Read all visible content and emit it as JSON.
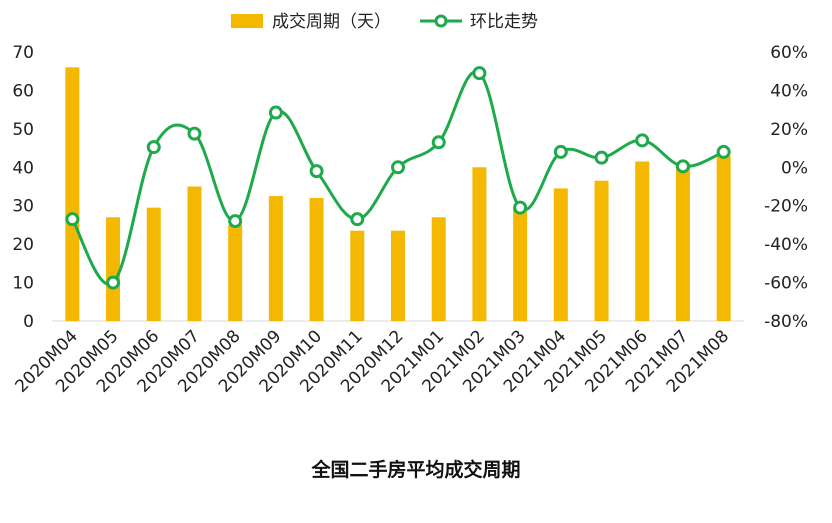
{
  "title": "全国二手房平均成交周期",
  "chart_data": {
    "type": "bar+line",
    "categories": [
      "2020M04",
      "2020M05",
      "2020M06",
      "2020M07",
      "2020M08",
      "2020M09",
      "2020M10",
      "2020M11",
      "2020M12",
      "2021M01",
      "2021M02",
      "2021M03",
      "2021M04",
      "2021M05",
      "2021M06",
      "2021M07",
      "2021M08"
    ],
    "series": [
      {
        "name": "成交周期（天）",
        "type": "bar",
        "axis": "left",
        "color": "#F5B800",
        "values": [
          66,
          27,
          29.5,
          35,
          25,
          32.5,
          32,
          23.5,
          23.5,
          27,
          40,
          29,
          34.5,
          36.5,
          41.5,
          41,
          43
        ]
      },
      {
        "name": "环比走势",
        "type": "line",
        "axis": "right",
        "color": "#1EAA4B",
        "unit": "%",
        "values": [
          -27,
          -60,
          10.5,
          17.5,
          -28,
          28.5,
          -2,
          -27,
          0,
          13,
          49,
          -21,
          8,
          5,
          14,
          0.5,
          8
        ]
      }
    ],
    "y_left": {
      "ylim": [
        0,
        70
      ],
      "ticks": [
        "0",
        "10",
        "20",
        "30",
        "40",
        "50",
        "60",
        "70"
      ]
    },
    "y_right": {
      "ylim": [
        -80,
        60
      ],
      "ticks": [
        "-80%",
        "-60%",
        "-40%",
        "-20%",
        "0%",
        "20%",
        "40%",
        "60%"
      ]
    },
    "grid": false,
    "legend_position": "top"
  }
}
